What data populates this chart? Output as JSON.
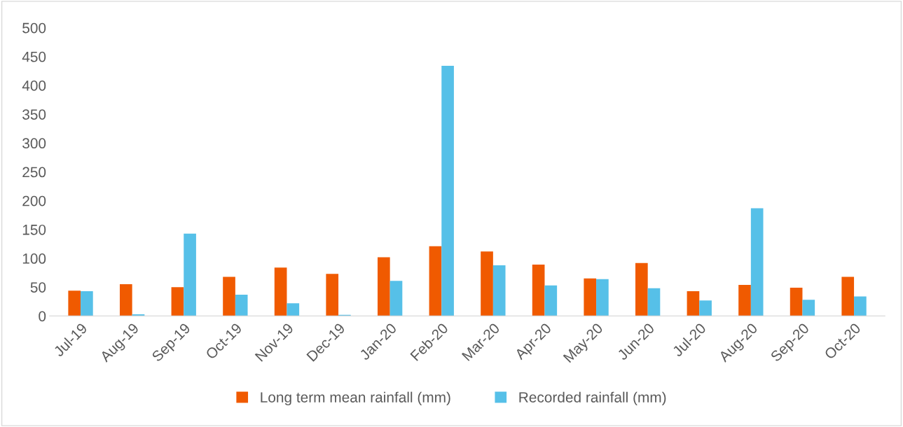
{
  "chart_data": {
    "type": "bar",
    "categories": [
      "Jul-19",
      "Aug-19",
      "Sep-19",
      "Oct-19",
      "Nov-19",
      "Dec-19",
      "Jan-20",
      "Feb-20",
      "Mar-20",
      "Apr-20",
      "May-20",
      "Jun-20",
      "Jul-20",
      "Aug-20",
      "Sep-20",
      "Oct-20"
    ],
    "series": [
      {
        "name": "Long term mean rainfall (mm)",
        "color": "#f05a00",
        "values": [
          44,
          55,
          50,
          68,
          84,
          73,
          102,
          121,
          112,
          89,
          65,
          92,
          43,
          54,
          49,
          68
        ]
      },
      {
        "name": "Recorded rainfall (mm)",
        "color": "#56c0e8",
        "values": [
          43,
          3,
          143,
          37,
          22,
          2,
          61,
          434,
          88,
          53,
          64,
          48,
          27,
          187,
          28,
          34
        ]
      }
    ],
    "ylim": [
      0,
      500
    ],
    "yticks": [
      0,
      50,
      100,
      150,
      200,
      250,
      300,
      350,
      400,
      450,
      500
    ],
    "grid": false,
    "legend": "bottom"
  }
}
